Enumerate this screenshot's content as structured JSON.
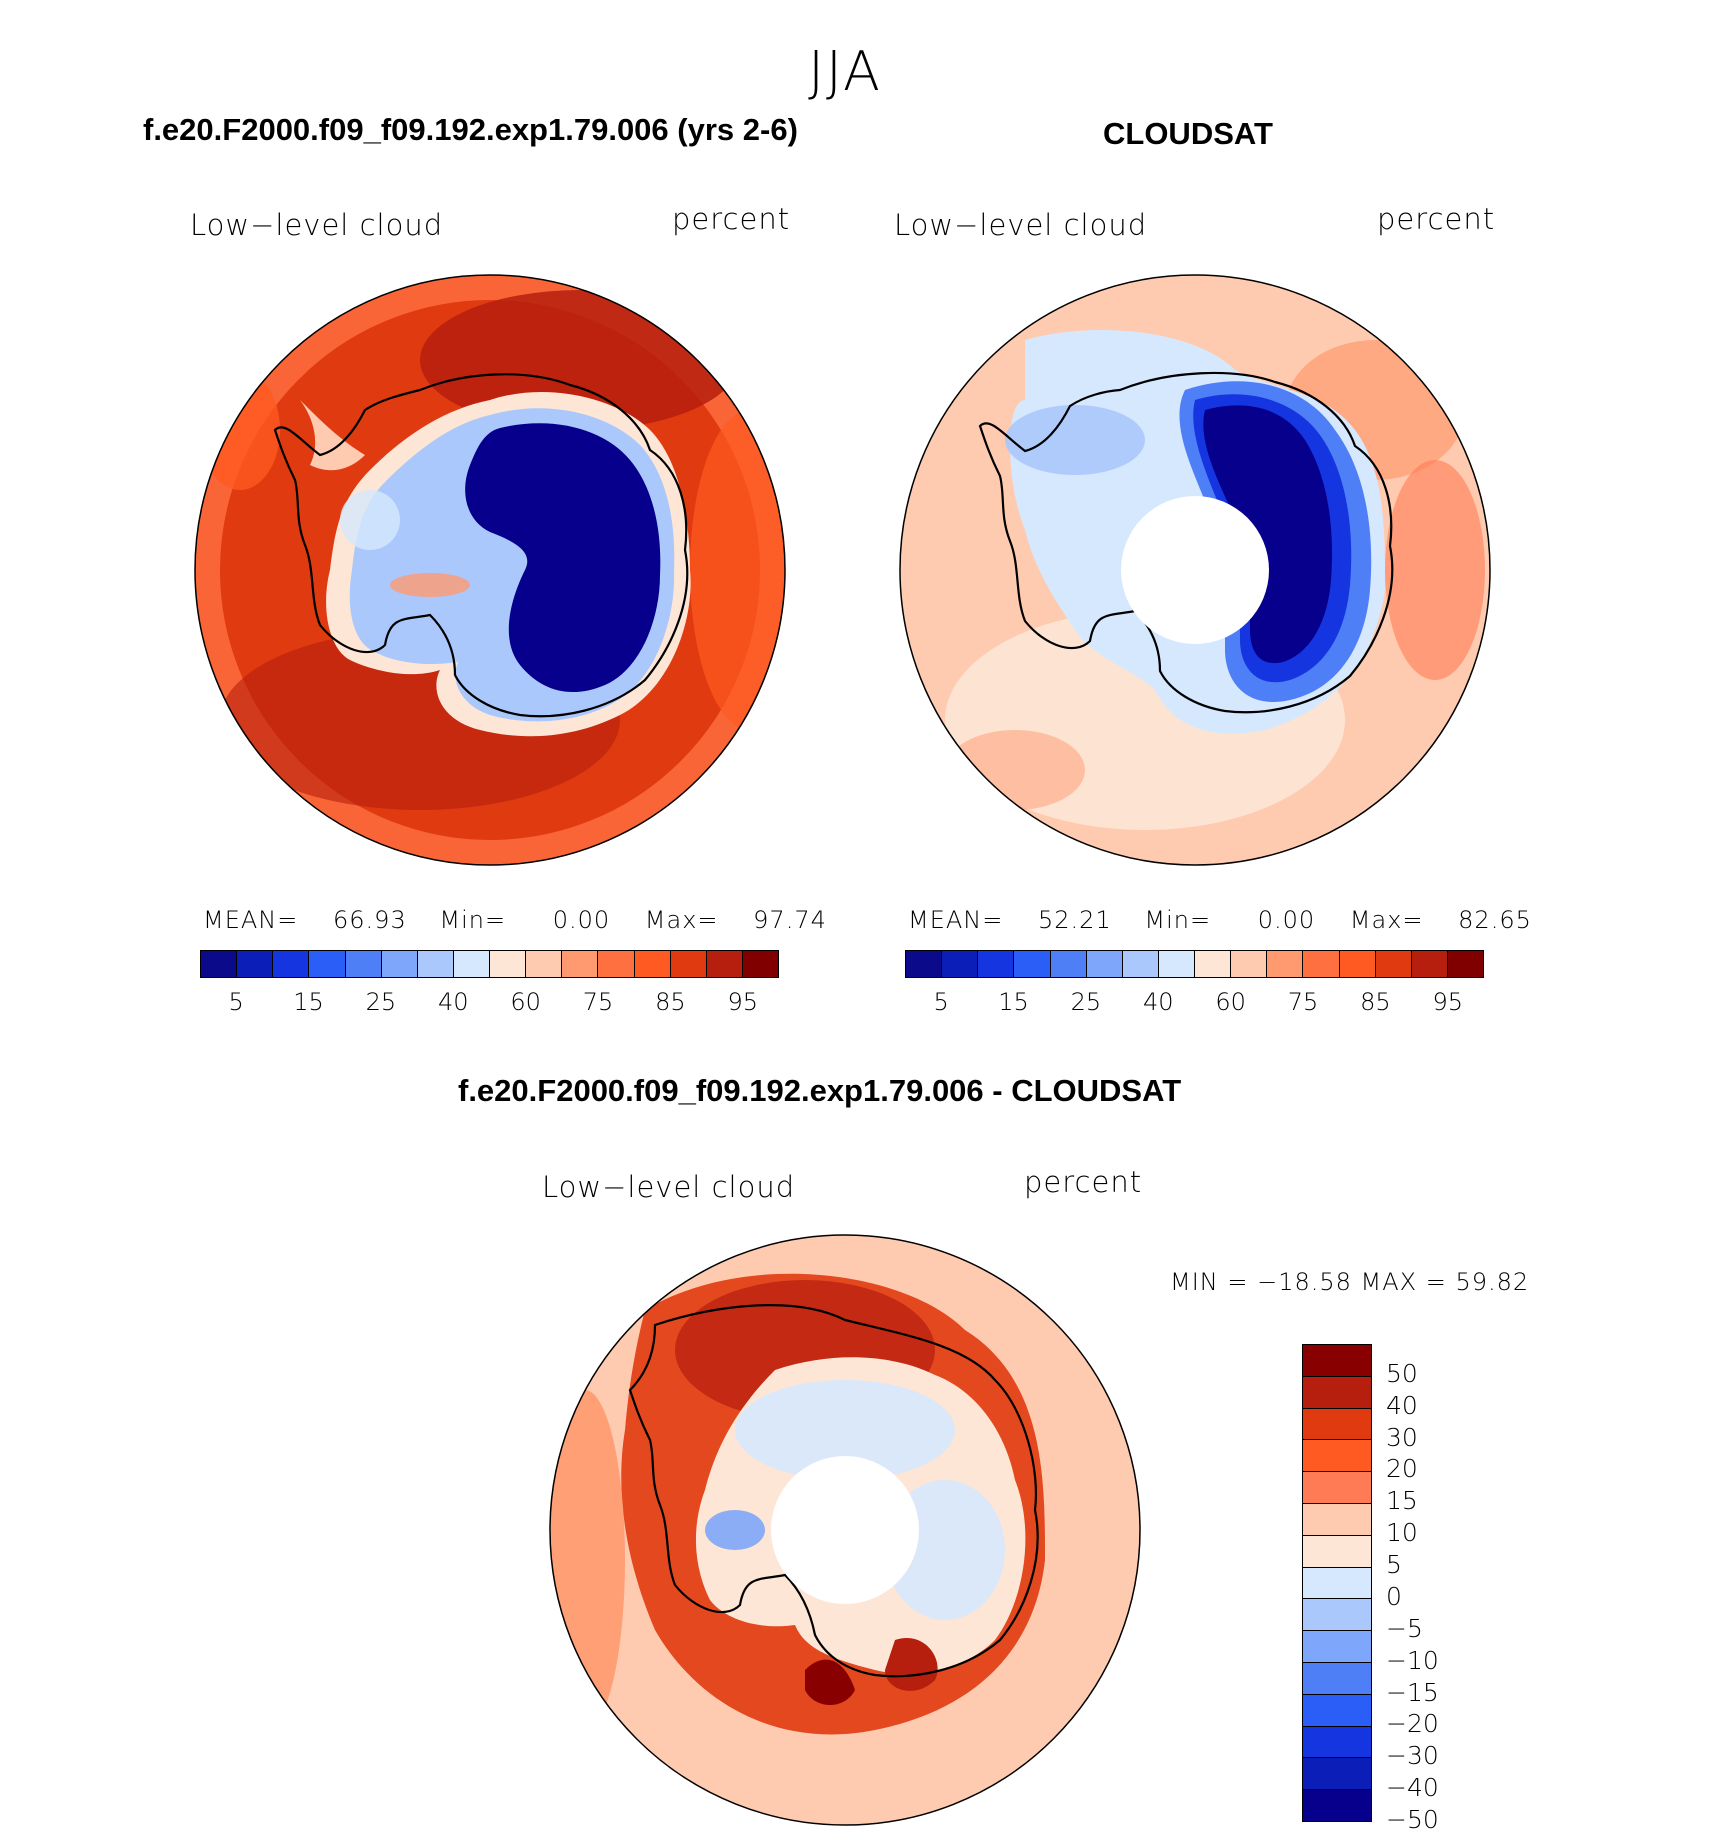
{
  "season": "JJA",
  "panels": [
    {
      "title": "f.e20.F2000.f09_f09.192.exp1.79.006 (yrs 2-6)",
      "field_label": "Low−level cloud",
      "units_label": "percent",
      "stats": {
        "mean_label": "MEAN=",
        "mean": "66.93",
        "min_label": "Min=",
        "min": "0.00",
        "max_label": "Max=",
        "max": "97.74"
      },
      "ocean_color": "#e03a10",
      "center_color": "#06008c",
      "ring_colors": [
        "#b61e0e",
        "#ff5a21",
        "#ff7040"
      ]
    },
    {
      "title": "CLOUDSAT",
      "field_label": "Low−level cloud",
      "units_label": "percent",
      "stats": {
        "mean_label": "MEAN=",
        "mean": "52.21",
        "min_label": "Min=",
        "min": "0.00",
        "max_label": "Max=",
        "max": "82.65"
      },
      "ocean_color": "#ffcbb0",
      "center_color": "#06008c",
      "ring_colors": [
        "#fde6d6",
        "#ff9a70",
        "#ff7b55"
      ]
    }
  ],
  "colorbar": {
    "colors": [
      "#0a0a8a",
      "#0b1fb8",
      "#1435e0",
      "#2a5ef6",
      "#4f7ff7",
      "#7ea6fa",
      "#aac8fc",
      "#d6e8fd",
      "#fde6d6",
      "#ffcbb0",
      "#ff9a70",
      "#ff7040",
      "#ff5a21",
      "#e03a10",
      "#b61e0e",
      "#800000"
    ],
    "tick_labels": [
      "5",
      "15",
      "25",
      "40",
      "60",
      "75",
      "85",
      "95"
    ]
  },
  "diff": {
    "title": "f.e20.F2000.f09_f09.192.exp1.79.006 - CLOUDSAT",
    "field_label": "Low−level cloud",
    "units_label": "percent",
    "minmax_text": "MIN = −18.58 MAX =   59.82",
    "colorbar_colors_top_to_bottom": [
      "#880000",
      "#b61e0e",
      "#e03a10",
      "#ff5a21",
      "#ff7b55",
      "#ffcbb0",
      "#fde6d6",
      "#d6e8fd",
      "#aac8fc",
      "#7ea6fa",
      "#4f7ff7",
      "#2a5ef6",
      "#1435e0",
      "#0b1fb8",
      "#06008c"
    ],
    "tick_labels": [
      "50",
      "40",
      "30",
      "20",
      "15",
      "10",
      "5",
      "0",
      "−5",
      "−10",
      "−15",
      "−20",
      "−30",
      "−40",
      "−50"
    ]
  }
}
